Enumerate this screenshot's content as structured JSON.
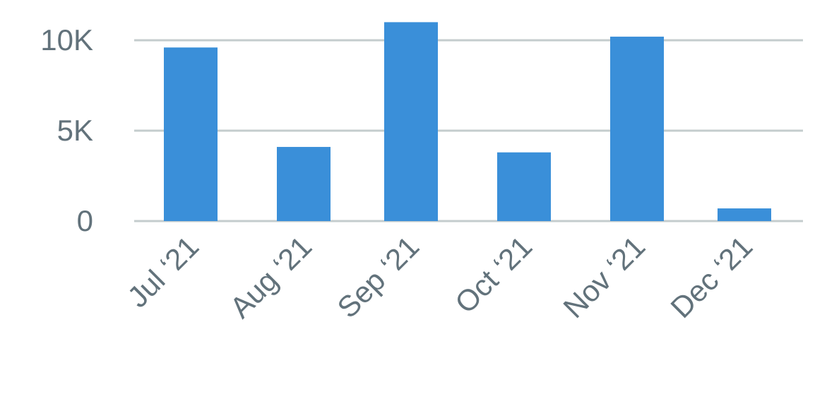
{
  "chart_data": {
    "type": "bar",
    "categories": [
      "Jul ‘21",
      "Aug ‘21",
      "Sep ‘21",
      "Oct ‘21",
      "Nov ‘21",
      "Dec ‘21"
    ],
    "values": [
      9600,
      4100,
      11000,
      3800,
      10200,
      700
    ],
    "y_ticks": [
      {
        "value": 0,
        "label": "0"
      },
      {
        "value": 5000,
        "label": "5K"
      },
      {
        "value": 10000,
        "label": "10K"
      }
    ],
    "ylim": [
      0,
      11000
    ],
    "grid": true,
    "title": "",
    "xlabel": "",
    "ylabel": "",
    "colors": {
      "bar": "#3a8fd9",
      "grid": "#c4cccd",
      "text": "#62727b"
    }
  }
}
